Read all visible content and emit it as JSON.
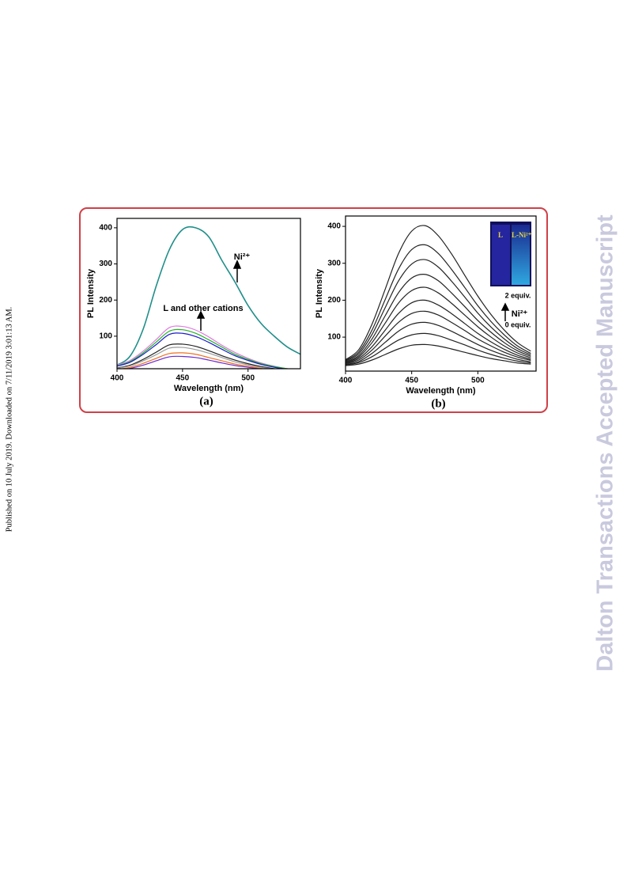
{
  "side_note": "Published on 10 July 2019. Downloaded on 7/11/2019 3:01:13 AM.",
  "watermark": "Dalton Transactions Accepted Manuscript",
  "chart_data": [
    {
      "type": "line",
      "panel_label": "(a)",
      "x_label": "Wavelength (nm)",
      "y_label": "PL Intensity",
      "annotations": [
        "Ni²⁺",
        "L and other cations"
      ],
      "x": [
        400,
        410,
        420,
        430,
        440,
        450,
        460,
        470,
        480,
        490,
        500,
        510,
        520,
        530,
        540
      ],
      "xlim": [
        400,
        540
      ],
      "ylim": [
        10,
        426
      ],
      "xticks": [
        400,
        450,
        500
      ],
      "yticks": [
        100,
        200,
        300,
        400
      ],
      "series": [
        {
          "color": "#1f8f8a",
          "values": [
            20,
            45,
            120,
            240,
            340,
            395,
            400,
            375,
            310,
            250,
            185,
            135,
            100,
            70,
            50
          ]
        },
        {
          "color": "#e07be0",
          "values": [
            20,
            33,
            59,
            91,
            124,
            127,
            117,
            98,
            75,
            55,
            39,
            26,
            17,
            10,
            7
          ]
        },
        {
          "color": "#22b422",
          "values": [
            18,
            30,
            54,
            84,
            114,
            118,
            108,
            90,
            70,
            50,
            36,
            24,
            16,
            10,
            6
          ]
        },
        {
          "color": "#1a1acc",
          "values": [
            17,
            28,
            50,
            77,
            105,
            108,
            99,
            83,
            64,
            46,
            33,
            22,
            14,
            9,
            6
          ]
        },
        {
          "color": "#222222",
          "values": [
            12,
            20,
            36,
            56,
            76,
            78,
            72,
            60,
            46,
            34,
            24,
            16,
            10,
            6,
            4
          ]
        },
        {
          "color": "#999999",
          "values": [
            11,
            18,
            32,
            49,
            67,
            69,
            63,
            53,
            41,
            29,
            21,
            14,
            9,
            6,
            4
          ]
        },
        {
          "color": "#f07020",
          "values": [
            8,
            14,
            25,
            39,
            52,
            54,
            50,
            41,
            32,
            23,
            17,
            11,
            7,
            4,
            3
          ]
        },
        {
          "color": "#6a2acc",
          "values": [
            7,
            11,
            20,
            32,
            43,
            44,
            41,
            34,
            26,
            19,
            14,
            9,
            6,
            4,
            2
          ]
        }
      ]
    },
    {
      "type": "line",
      "panel_label": "(b)",
      "x_label": "Wavelength (nm)",
      "y_label": "PL Intensity",
      "annotations": [
        "2 equiv.",
        "Ni²⁺",
        "0 equiv.",
        "L",
        "L-Ni²⁺"
      ],
      "x": [
        400,
        410,
        420,
        430,
        440,
        450,
        460,
        470,
        480,
        490,
        500,
        510,
        520,
        530,
        540
      ],
      "xlim": [
        400,
        544
      ],
      "ylim": [
        8,
        428
      ],
      "xticks": [
        400,
        450,
        500
      ],
      "yticks": [
        100,
        200,
        300,
        400
      ],
      "series": [
        {
          "color": "#222222",
          "values": [
            23,
            27,
            38,
            53,
            68,
            78,
            80,
            76,
            68,
            59,
            50,
            42,
            36,
            30,
            27
          ]
        },
        {
          "color": "#222222",
          "values": [
            25,
            31,
            47,
            70,
            92,
            106,
            110,
            104,
            92,
            79,
            65,
            53,
            43,
            35,
            30
          ]
        },
        {
          "color": "#222222",
          "values": [
            26,
            34,
            56,
            86,
            116,
            135,
            140,
            132,
            116,
            98,
            80,
            64,
            51,
            40,
            33
          ]
        },
        {
          "color": "#222222",
          "values": [
            28,
            38,
            65,
            103,
            140,
            164,
            170,
            160,
            140,
            118,
            95,
            76,
            59,
            46,
            37
          ]
        },
        {
          "color": "#222222",
          "values": [
            29,
            42,
            74,
            119,
            164,
            193,
            200,
            187,
            164,
            137,
            110,
            87,
            67,
            51,
            40
          ]
        },
        {
          "color": "#222222",
          "values": [
            31,
            46,
            85,
            138,
            192,
            226,
            235,
            220,
            192,
            160,
            128,
            100,
            76,
            57,
            44
          ]
        },
        {
          "color": "#222222",
          "values": [
            33,
            50,
            95,
            158,
            220,
            260,
            270,
            253,
            220,
            183,
            145,
            113,
            85,
            63,
            48
          ]
        },
        {
          "color": "#222222",
          "values": [
            35,
            55,
            107,
            180,
            252,
            298,
            310,
            290,
            252,
            209,
            165,
            127,
            95,
            69,
            52
          ]
        },
        {
          "color": "#222222",
          "values": [
            37,
            60,
            119,
            202,
            284,
            337,
            350,
            327,
            284,
            235,
            185,
            142,
            106,
            76,
            56
          ]
        },
        {
          "color": "#222222",
          "values": [
            39,
            66,
            135,
            230,
            326,
            387,
            402,
            375,
            326,
            268,
            211,
            161,
            119,
            85,
            62
          ]
        }
      ]
    }
  ]
}
